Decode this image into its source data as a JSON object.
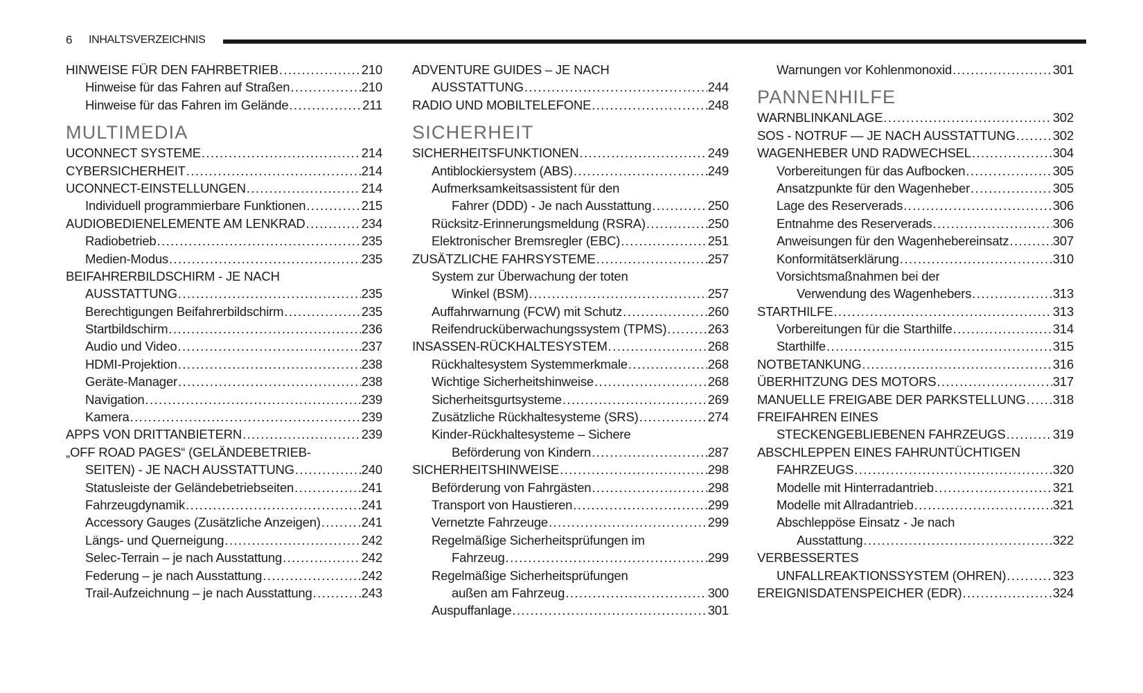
{
  "header": {
    "page_number": "6",
    "title": "INHALTSVERZEICHNIS"
  },
  "colors": {
    "text": "#1b1b1d",
    "heading": "#6b6c6f",
    "rule": "#1a1a1a",
    "background": "#ffffff"
  },
  "columns": [
    {
      "lines": [
        {
          "text": "HINWEISE FÜR DEN FAHRBETRIEB",
          "page": "210",
          "indent": 0
        },
        {
          "text": "Hinweise für das Fahren auf Straßen",
          "page": "210",
          "indent": 1
        },
        {
          "text": "Hinweise für das Fahren im Gelände",
          "page": "211",
          "indent": 1
        },
        {
          "text": "MULTIMEDIA",
          "heading": true
        },
        {
          "text": "UCONNECT SYSTEME",
          "page": "214",
          "indent": 0
        },
        {
          "text": "CYBERSICHERHEIT",
          "page": "214",
          "indent": 0
        },
        {
          "text": "UCONNECT-EINSTELLUNGEN",
          "page": "214",
          "indent": 0
        },
        {
          "text": "Individuell programmierbare Funktionen",
          "page": "215",
          "indent": 1
        },
        {
          "text": "AUDIOBEDIENELEMENTE AM LENKRAD",
          "page": "234",
          "indent": 0
        },
        {
          "text": "Radiobetrieb",
          "page": "235",
          "indent": 1
        },
        {
          "text": "Medien-Modus",
          "page": "235",
          "indent": 1
        },
        {
          "text": "BEIFAHRERBILDSCHIRM - JE NACH",
          "indent": 0
        },
        {
          "text": "AUSSTATTUNG",
          "page": "235",
          "indent": 1
        },
        {
          "text": "Berechtigungen Beifahrerbildschirm",
          "page": "235",
          "indent": 1
        },
        {
          "text": "Startbildschirm",
          "page": "236",
          "indent": 1
        },
        {
          "text": "Audio und Video",
          "page": "237",
          "indent": 1
        },
        {
          "text": "HDMI-Projektion",
          "page": "238",
          "indent": 1
        },
        {
          "text": "Geräte-Manager",
          "page": "238",
          "indent": 1
        },
        {
          "text": "Navigation",
          "page": "239",
          "indent": 1
        },
        {
          "text": "Kamera",
          "page": "239",
          "indent": 1
        },
        {
          "text": "APPS VON DRITTANBIETERN",
          "page": "239",
          "indent": 0
        },
        {
          "text": "„OFF ROAD PAGES“ (GELÄNDEBETRIEB-",
          "indent": 0
        },
        {
          "text": "SEITEN) - JE NACH AUSSTATTUNG",
          "page": "240",
          "indent": 1
        },
        {
          "text": "Statusleiste der Geländebetriebseiten",
          "page": "241",
          "indent": 1
        },
        {
          "text": "Fahrzeugdynamik",
          "page": "241",
          "indent": 1
        },
        {
          "text": "Accessory Gauges (Zusätzliche Anzeigen)",
          "page": "241",
          "indent": 1
        },
        {
          "text": "Längs- und Querneigung",
          "page": "242",
          "indent": 1
        },
        {
          "text": "Selec-Terrain – je nach Ausstattung",
          "page": "242",
          "indent": 1
        },
        {
          "text": "Federung – je nach Ausstattung",
          "page": "242",
          "indent": 1
        },
        {
          "text": "Trail-Aufzeichnung – je nach Ausstattung",
          "page": "243",
          "indent": 1
        }
      ]
    },
    {
      "lines": [
        {
          "text": "ADVENTURE GUIDES – JE NACH",
          "indent": 0
        },
        {
          "text": "AUSSTATTUNG",
          "page": "244",
          "indent": 1
        },
        {
          "text": "RADIO UND MOBILTELEFONE",
          "page": "248",
          "indent": 0
        },
        {
          "text": "SICHERHEIT",
          "heading": true
        },
        {
          "text": "SICHERHEITSFUNKTIONEN",
          "page": "249",
          "indent": 0
        },
        {
          "text": "Antiblockiersystem (ABS)",
          "page": "249",
          "indent": 1
        },
        {
          "text": "Aufmerksamkeitsassistent für den",
          "indent": 1
        },
        {
          "text": "Fahrer (DDD) - Je nach Ausstattung",
          "page": "250",
          "indent": 2
        },
        {
          "text": "Rücksitz-Erinnerungsmeldung (RSRA)",
          "page": "250",
          "indent": 1
        },
        {
          "text": "Elektronischer Bremsregler (EBC)",
          "page": "251",
          "indent": 1
        },
        {
          "text": "ZUSÄTZLICHE FAHRSYSTEME",
          "page": "257",
          "indent": 0
        },
        {
          "text": "System zur Überwachung der toten",
          "indent": 1
        },
        {
          "text": "Winkel (BSM)",
          "page": "257",
          "indent": 2
        },
        {
          "text": "Auffahrwarnung (FCW) mit Schutz",
          "page": "260",
          "indent": 1
        },
        {
          "text": "Reifendrucküberwachungssystem (TPMS)",
          "page": "263",
          "indent": 1
        },
        {
          "text": "INSASSEN-RÜCKHALTESYSTEM",
          "page": "268",
          "indent": 0
        },
        {
          "text": "Rückhaltesystem Systemmerkmale",
          "page": "268",
          "indent": 1
        },
        {
          "text": "Wichtige Sicherheitshinweise",
          "page": "268",
          "indent": 1
        },
        {
          "text": "Sicherheitsgurtsysteme",
          "page": "269",
          "indent": 1
        },
        {
          "text": "Zusätzliche Rückhaltesysteme (SRS)",
          "page": "274",
          "indent": 1
        },
        {
          "text": "Kinder-Rückhaltesysteme – Sichere",
          "indent": 1
        },
        {
          "text": "Beförderung von Kindern",
          "page": "287",
          "indent": 2
        },
        {
          "text": "SICHERHEITSHINWEISE",
          "page": "298",
          "indent": 0
        },
        {
          "text": "Beförderung von Fahrgästen",
          "page": "298",
          "indent": 1
        },
        {
          "text": "Transport von Haustieren",
          "page": "299",
          "indent": 1
        },
        {
          "text": "Vernetzte Fahrzeuge",
          "page": "299",
          "indent": 1
        },
        {
          "text": "Regelmäßige Sicherheitsprüfungen im",
          "indent": 1
        },
        {
          "text": "Fahrzeug",
          "page": "299",
          "indent": 2
        },
        {
          "text": "Regelmäßige Sicherheitsprüfungen",
          "indent": 1
        },
        {
          "text": "außen am Fahrzeug",
          "page": "300",
          "indent": 2
        },
        {
          "text": "Auspuffanlage",
          "page": "301",
          "indent": 1
        }
      ]
    },
    {
      "lines": [
        {
          "text": "Warnungen vor Kohlenmonoxid",
          "page": "301",
          "indent": 1
        },
        {
          "text": "PANNENHILFE",
          "heading": true
        },
        {
          "text": "WARNBLINKANLAGE",
          "page": "302",
          "indent": 0
        },
        {
          "text": "SOS - NOTRUF — JE NACH AUSSTATTUNG",
          "page": "302",
          "indent": 0
        },
        {
          "text": "WAGENHEBER UND RADWECHSEL",
          "page": "304",
          "indent": 0
        },
        {
          "text": "Vorbereitungen für das Aufbocken",
          "page": "305",
          "indent": 1
        },
        {
          "text": "Ansatzpunkte für den Wagenheber",
          "page": "305",
          "indent": 1
        },
        {
          "text": "Lage des Reserverads",
          "page": "306",
          "indent": 1
        },
        {
          "text": "Entnahme des Reserverads",
          "page": "306",
          "indent": 1
        },
        {
          "text": "Anweisungen für den Wagenhebereinsatz",
          "page": "307",
          "indent": 1
        },
        {
          "text": "Konformitätserklärung",
          "page": "310",
          "indent": 1
        },
        {
          "text": "Vorsichtsmaßnahmen bei der",
          "indent": 1
        },
        {
          "text": "Verwendung des Wagenhebers",
          "page": "313",
          "indent": 2
        },
        {
          "text": "STARTHILFE",
          "page": "313",
          "indent": 0
        },
        {
          "text": "Vorbereitungen für die Starthilfe",
          "page": "314",
          "indent": 1
        },
        {
          "text": "Starthilfe",
          "page": "315",
          "indent": 1
        },
        {
          "text": "NOTBETANKUNG",
          "page": "316",
          "indent": 0
        },
        {
          "text": "ÜBERHITZUNG DES MOTORS",
          "page": "317",
          "indent": 0
        },
        {
          "text": "MANUELLE FREIGABE DER PARKSTELLUNG",
          "page": "318",
          "indent": 0
        },
        {
          "text": "FREIFAHREN EINES",
          "indent": 0
        },
        {
          "text": "STECKENGEBLIEBENEN FAHRZEUGS",
          "page": "319",
          "indent": 1
        },
        {
          "text": "ABSCHLEPPEN EINES FAHRUNTÜCHTIGEN",
          "indent": 0
        },
        {
          "text": "FAHRZEUGS",
          "page": "320",
          "indent": 1
        },
        {
          "text": "Modelle mit Hinterradantrieb",
          "page": "321",
          "indent": 1
        },
        {
          "text": "Modelle mit Allradantrieb",
          "page": "321",
          "indent": 1
        },
        {
          "text": "Abschleppöse Einsatz - Je nach",
          "indent": 1
        },
        {
          "text": "Ausstattung",
          "page": "322",
          "indent": 2
        },
        {
          "text": "VERBESSERTES",
          "indent": 0
        },
        {
          "text": "UNFALLREAKTIONSSYSTEM (OHREN)",
          "page": "323",
          "indent": 1
        },
        {
          "text": "EREIGNISDATENSPEICHER (EDR)",
          "page": "324",
          "indent": 0
        }
      ]
    }
  ]
}
